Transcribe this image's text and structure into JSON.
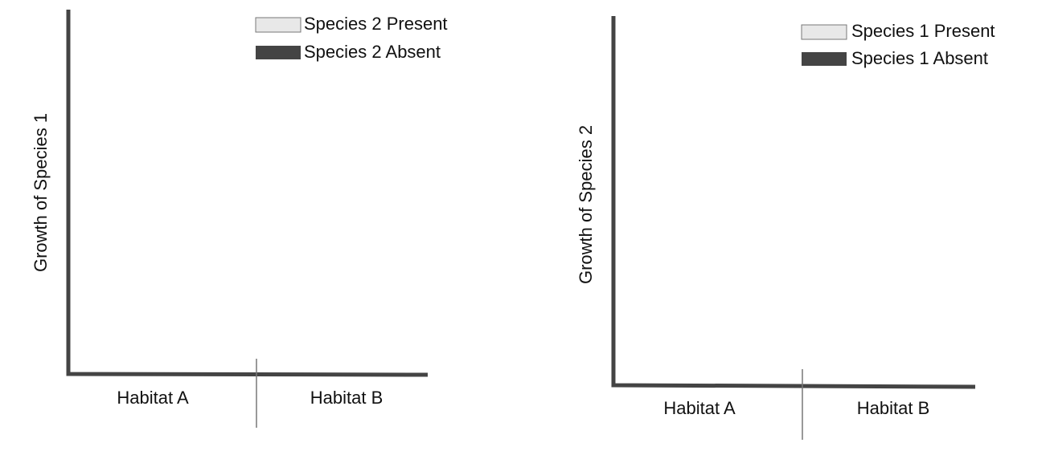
{
  "graphs": [
    {
      "y_label": "Growth of Species 1",
      "x_labels": [
        "Habitat A",
        "Habitat B"
      ],
      "legend": [
        "Species 2 Present",
        "Species 2 Absent"
      ]
    },
    {
      "y_label": "Growth of Species 2",
      "x_labels": [
        "Habitat A",
        "Habitat B"
      ],
      "legend": [
        "Species 1 Present",
        "Species 1 Absent"
      ]
    }
  ]
}
